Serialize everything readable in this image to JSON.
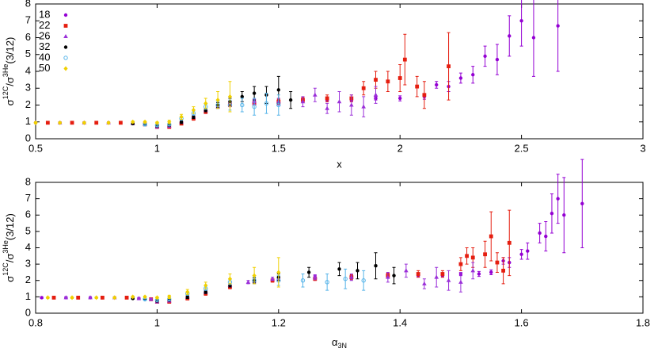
{
  "chart_data": [
    {
      "type": "scatter",
      "xlabel": "x",
      "ylabel": {
        "base": "σ",
        "sup1": "12C",
        "mid": "/σ",
        "sup2": "3He",
        "tail": "(3/12)"
      },
      "xlim": [
        0.5,
        3
      ],
      "xticks": [
        0.5,
        1,
        1.5,
        2,
        2.5,
        3
      ],
      "ylim": [
        0,
        8
      ],
      "yticks": [
        0,
        1,
        2,
        3,
        4,
        5,
        6,
        7,
        8
      ],
      "legend": "upper left",
      "series": [
        {
          "name": "18",
          "color": "#9400d3",
          "marker": "circle",
          "x": [
            0.5,
            0.55,
            0.6,
            0.65,
            0.7,
            0.75,
            0.8,
            0.85,
            0.9,
            0.95,
            1.0,
            1.05,
            1.1,
            1.15,
            1.2,
            1.25,
            1.3,
            1.4,
            1.5,
            1.6,
            1.7,
            1.8,
            1.9,
            2.0,
            2.1,
            2.15,
            2.2,
            2.25,
            2.3,
            2.35,
            2.4,
            2.45,
            2.5,
            2.55,
            2.65
          ],
          "values": [
            0.95,
            0.95,
            0.95,
            0.95,
            0.95,
            0.95,
            0.95,
            0.95,
            0.9,
            0.85,
            0.75,
            0.75,
            0.95,
            1.3,
            1.6,
            1.9,
            2.1,
            2.2,
            2.2,
            2.3,
            2.3,
            2.3,
            2.4,
            2.4,
            2.5,
            3.2,
            3.1,
            3.6,
            3.8,
            4.9,
            4.7,
            6.1,
            7.0,
            6.0,
            6.7
          ],
          "errors": [
            0.05,
            0.05,
            0.05,
            0.05,
            0.05,
            0.05,
            0.05,
            0.05,
            0.05,
            0.05,
            0.05,
            0.05,
            0.05,
            0.1,
            0.1,
            0.1,
            0.1,
            0.1,
            0.1,
            0.1,
            0.1,
            0.1,
            0.1,
            0.15,
            0.15,
            0.2,
            0.3,
            0.3,
            0.5,
            0.6,
            0.9,
            1.2,
            1.5,
            2.3,
            2.7
          ]
        },
        {
          "name": "22",
          "color": "#e51e10",
          "marker": "square",
          "x": [
            0.55,
            0.65,
            0.75,
            0.85,
            0.95,
            1.0,
            1.05,
            1.1,
            1.15,
            1.2,
            1.3,
            1.4,
            1.5,
            1.6,
            1.7,
            1.8,
            1.85,
            1.9,
            1.95,
            2.0,
            2.02,
            2.07,
            2.1,
            2.2
          ],
          "values": [
            0.95,
            0.95,
            0.95,
            0.95,
            0.85,
            0.7,
            0.7,
            0.9,
            1.2,
            1.6,
            2.0,
            2.1,
            2.2,
            2.3,
            2.4,
            2.4,
            3.0,
            3.5,
            3.4,
            3.6,
            4.7,
            3.1,
            2.6,
            4.3
          ],
          "errors": [
            0.05,
            0.05,
            0.05,
            0.05,
            0.05,
            0.05,
            0.05,
            0.05,
            0.1,
            0.1,
            0.1,
            0.1,
            0.15,
            0.15,
            0.2,
            0.2,
            0.4,
            0.5,
            0.6,
            0.8,
            1.5,
            0.6,
            0.8,
            2.0
          ]
        },
        {
          "name": "26",
          "color": "#9b30d9",
          "marker": "triangle",
          "x": [
            0.6,
            0.7,
            0.8,
            0.9,
            0.95,
            1.0,
            1.05,
            1.1,
            1.15,
            1.2,
            1.25,
            1.3,
            1.4,
            1.5,
            1.6,
            1.65,
            1.7,
            1.75,
            1.8,
            1.85,
            1.9
          ],
          "values": [
            0.95,
            0.95,
            0.95,
            0.9,
            0.85,
            0.7,
            0.75,
            1.0,
            1.3,
            1.7,
            1.9,
            2.1,
            2.2,
            2.2,
            2.2,
            2.6,
            1.8,
            2.2,
            2.0,
            1.9,
            2.6
          ],
          "errors": [
            0.05,
            0.05,
            0.05,
            0.05,
            0.05,
            0.05,
            0.05,
            0.05,
            0.1,
            0.1,
            0.1,
            0.1,
            0.15,
            0.2,
            0.3,
            0.4,
            0.3,
            0.6,
            0.6,
            0.6,
            0.5
          ]
        },
        {
          "name": "32",
          "color": "#000000",
          "marker": "circle",
          "x": [
            0.9,
            0.95,
            1.0,
            1.05,
            1.1,
            1.15,
            1.2,
            1.25,
            1.3,
            1.35,
            1.4,
            1.45,
            1.5,
            1.55
          ],
          "values": [
            0.9,
            0.85,
            0.75,
            0.8,
            1.0,
            1.3,
            1.7,
            2.0,
            2.2,
            2.5,
            2.7,
            2.6,
            2.9,
            2.3
          ],
          "errors": [
            0.05,
            0.05,
            0.05,
            0.05,
            0.1,
            0.1,
            0.1,
            0.15,
            0.2,
            0.3,
            0.4,
            0.5,
            0.8,
            0.5
          ]
        },
        {
          "name": "40",
          "color": "#56b4e9",
          "marker": "open-circle",
          "x": [
            0.95,
            1.0,
            1.05,
            1.1,
            1.15,
            1.2,
            1.25,
            1.3,
            1.35,
            1.4,
            1.45,
            1.5
          ],
          "values": [
            0.85,
            0.8,
            0.85,
            1.2,
            1.5,
            1.9,
            2.0,
            2.0,
            2.0,
            1.9,
            2.1,
            2.0
          ],
          "errors": [
            0.05,
            0.05,
            0.05,
            0.1,
            0.1,
            0.15,
            0.2,
            0.3,
            0.4,
            0.5,
            0.6,
            0.6
          ]
        },
        {
          "name": "50",
          "color": "#f0d000",
          "marker": "diamond",
          "x": [
            0.5,
            0.6,
            0.7,
            0.8,
            0.9,
            0.95,
            1.0,
            1.05,
            1.1,
            1.15,
            1.2,
            1.25,
            1.3
          ],
          "values": [
            0.95,
            0.95,
            0.95,
            0.95,
            1.0,
            1.0,
            0.95,
            1.0,
            1.3,
            1.7,
            2.1,
            2.3,
            2.5
          ],
          "errors": [
            0.05,
            0.05,
            0.05,
            0.05,
            0.05,
            0.05,
            0.05,
            0.1,
            0.15,
            0.2,
            0.3,
            0.5,
            0.9
          ]
        }
      ]
    },
    {
      "type": "scatter",
      "xlabel": {
        "base": "α",
        "sub": "3N"
      },
      "ylabel": {
        "base": "σ",
        "sup1": "12C",
        "mid": "/σ",
        "sup2": "3He",
        "tail": "(3/12)"
      },
      "xlim": [
        0.8,
        1.8
      ],
      "xticks": [
        0.8,
        1,
        1.2,
        1.4,
        1.6,
        1.8
      ],
      "ylim": [
        0,
        8
      ],
      "yticks": [
        0,
        1,
        2,
        3,
        4,
        5,
        6,
        7,
        8
      ],
      "series": [
        {
          "color": "#9400d3",
          "marker": "circle",
          "x": [
            0.81,
            0.83,
            0.85,
            0.87,
            0.89,
            0.91,
            0.93,
            0.95,
            0.97,
            0.99,
            1.0,
            1.02,
            1.05,
            1.08,
            1.12,
            1.16,
            1.2,
            1.26,
            1.32,
            1.38,
            1.43,
            1.47,
            1.5,
            1.53,
            1.55,
            1.57,
            1.58,
            1.6,
            1.61,
            1.63,
            1.64,
            1.65,
            1.66,
            1.67,
            1.7
          ],
          "values": [
            0.95,
            0.95,
            0.95,
            0.95,
            0.95,
            0.95,
            0.95,
            0.95,
            0.9,
            0.85,
            0.75,
            0.75,
            0.95,
            1.3,
            1.6,
            1.9,
            2.1,
            2.2,
            2.2,
            2.3,
            2.3,
            2.3,
            2.4,
            2.4,
            2.5,
            3.2,
            3.1,
            3.6,
            3.8,
            4.9,
            4.7,
            6.1,
            7.0,
            6.0,
            6.7
          ],
          "errors": [
            0.05,
            0.05,
            0.05,
            0.05,
            0.05,
            0.05,
            0.05,
            0.05,
            0.05,
            0.05,
            0.05,
            0.05,
            0.05,
            0.1,
            0.1,
            0.1,
            0.1,
            0.1,
            0.1,
            0.1,
            0.1,
            0.1,
            0.1,
            0.15,
            0.15,
            0.2,
            0.3,
            0.3,
            0.5,
            0.6,
            0.9,
            1.2,
            1.5,
            2.3,
            2.7
          ]
        },
        {
          "color": "#e51e10",
          "marker": "square",
          "x": [
            0.83,
            0.87,
            0.91,
            0.95,
            0.99,
            1.0,
            1.02,
            1.05,
            1.08,
            1.12,
            1.19,
            1.26,
            1.32,
            1.38,
            1.43,
            1.47,
            1.5,
            1.51,
            1.52,
            1.54,
            1.55,
            1.56,
            1.57,
            1.58
          ],
          "values": [
            0.95,
            0.95,
            0.95,
            0.95,
            0.85,
            0.7,
            0.7,
            0.9,
            1.2,
            1.6,
            2.0,
            2.1,
            2.2,
            2.3,
            2.4,
            2.4,
            3.0,
            3.5,
            3.4,
            3.6,
            4.7,
            3.1,
            2.6,
            4.3
          ],
          "errors": [
            0.05,
            0.05,
            0.05,
            0.05,
            0.05,
            0.05,
            0.05,
            0.05,
            0.1,
            0.1,
            0.1,
            0.1,
            0.15,
            0.15,
            0.2,
            0.2,
            0.4,
            0.5,
            0.6,
            0.8,
            1.5,
            0.6,
            0.8,
            2.0
          ]
        },
        {
          "color": "#9b30d9",
          "marker": "triangle",
          "x": [
            0.85,
            0.89,
            0.93,
            0.97,
            0.99,
            1.0,
            1.02,
            1.05,
            1.08,
            1.12,
            1.15,
            1.19,
            1.26,
            1.32,
            1.38,
            1.41,
            1.44,
            1.46,
            1.48,
            1.5,
            1.52
          ],
          "values": [
            0.95,
            0.95,
            0.95,
            0.9,
            0.85,
            0.7,
            0.75,
            1.0,
            1.3,
            1.7,
            1.9,
            2.1,
            2.2,
            2.2,
            2.2,
            2.6,
            1.8,
            2.2,
            2.0,
            1.9,
            2.6
          ],
          "errors": [
            0.05,
            0.05,
            0.05,
            0.05,
            0.05,
            0.05,
            0.05,
            0.05,
            0.1,
            0.1,
            0.1,
            0.1,
            0.15,
            0.2,
            0.3,
            0.4,
            0.3,
            0.6,
            0.6,
            0.6,
            0.5
          ]
        },
        {
          "color": "#000000",
          "marker": "circle",
          "x": [
            0.96,
            0.98,
            1.0,
            1.02,
            1.05,
            1.08,
            1.12,
            1.16,
            1.2,
            1.25,
            1.3,
            1.33,
            1.36,
            1.39
          ],
          "values": [
            0.9,
            0.85,
            0.75,
            0.8,
            1.0,
            1.3,
            1.7,
            2.0,
            2.2,
            2.5,
            2.7,
            2.6,
            2.9,
            2.3
          ],
          "errors": [
            0.05,
            0.05,
            0.05,
            0.05,
            0.1,
            0.1,
            0.1,
            0.15,
            0.2,
            0.3,
            0.4,
            0.5,
            0.8,
            0.5
          ]
        },
        {
          "color": "#56b4e9",
          "marker": "open-circle",
          "x": [
            0.98,
            1.0,
            1.02,
            1.05,
            1.08,
            1.12,
            1.16,
            1.2,
            1.24,
            1.28,
            1.31,
            1.34
          ],
          "values": [
            0.85,
            0.8,
            0.85,
            1.2,
            1.5,
            1.9,
            2.0,
            2.0,
            2.0,
            1.9,
            2.1,
            2.0
          ],
          "errors": [
            0.05,
            0.05,
            0.05,
            0.1,
            0.1,
            0.15,
            0.2,
            0.3,
            0.4,
            0.5,
            0.6,
            0.6
          ]
        },
        {
          "color": "#f0d000",
          "marker": "diamond",
          "x": [
            0.82,
            0.86,
            0.9,
            0.93,
            0.96,
            0.98,
            1.0,
            1.02,
            1.05,
            1.08,
            1.12,
            1.16,
            1.2
          ],
          "values": [
            0.95,
            0.95,
            0.95,
            0.95,
            1.0,
            1.0,
            0.95,
            1.0,
            1.3,
            1.7,
            2.1,
            2.3,
            2.5
          ],
          "errors": [
            0.05,
            0.05,
            0.05,
            0.05,
            0.05,
            0.05,
            0.05,
            0.1,
            0.15,
            0.2,
            0.3,
            0.5,
            0.9
          ]
        }
      ]
    }
  ]
}
